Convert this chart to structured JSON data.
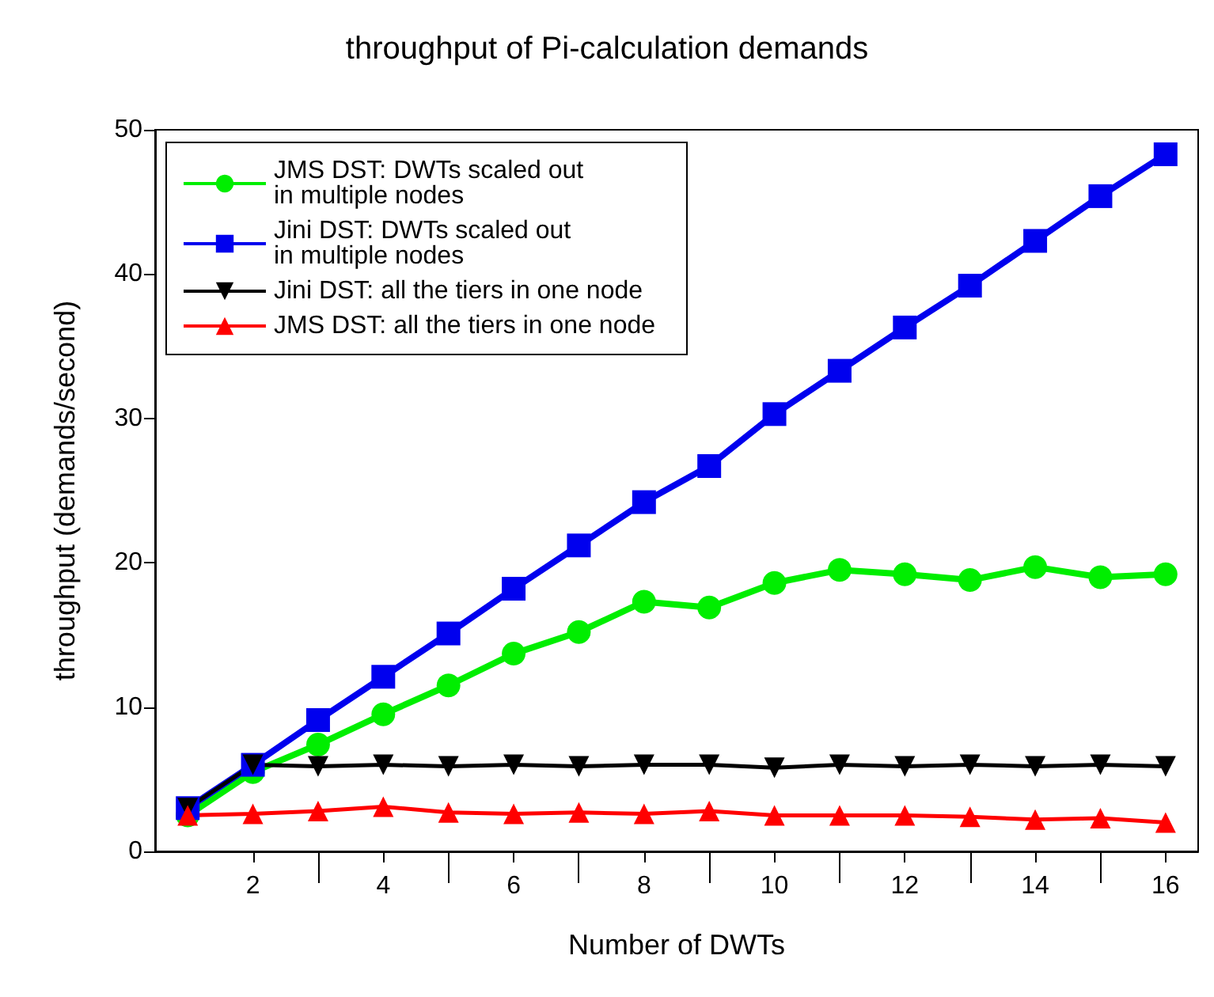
{
  "chart_data": {
    "type": "line",
    "title": "throughput of Pi-calculation demands",
    "xlabel": "Number of DWTs",
    "ylabel": "throughput (demands/second)",
    "x": [
      1,
      2,
      3,
      4,
      5,
      6,
      7,
      8,
      9,
      10,
      11,
      12,
      13,
      14,
      15,
      16
    ],
    "xlim": [
      0.5,
      16.5
    ],
    "xticks": [
      2,
      4,
      6,
      8,
      10,
      12,
      14,
      16
    ],
    "ylim": [
      0,
      50
    ],
    "yticks": [
      0,
      10,
      20,
      30,
      40,
      50
    ],
    "legend": "top left",
    "grid": false,
    "series": [
      {
        "name": "JMS DST: DWTs scaled out\nin multiple nodes",
        "color": "#00ee00",
        "marker": "circle",
        "values": [
          2.5,
          5.5,
          7.4,
          9.5,
          11.5,
          13.7,
          15.2,
          17.3,
          16.9,
          18.6,
          19.5,
          19.2,
          18.8,
          19.7,
          19.0,
          19.2
        ]
      },
      {
        "name": "Jini DST: DWTs scaled out\nin multiple nodes",
        "color": "#0000ee",
        "marker": "square",
        "values": [
          3.0,
          6.0,
          9.1,
          12.1,
          15.1,
          18.2,
          21.2,
          24.2,
          26.7,
          30.3,
          33.3,
          36.3,
          39.2,
          42.3,
          45.4,
          48.3
        ]
      },
      {
        "name": "Jini DST: all the tiers in one node",
        "color": "#000000",
        "marker": "triangle-down",
        "values": [
          3.0,
          6.0,
          5.9,
          6.0,
          5.9,
          6.0,
          5.9,
          6.0,
          6.0,
          5.8,
          6.0,
          5.9,
          6.0,
          5.9,
          6.0,
          5.9
        ]
      },
      {
        "name": "JMS DST: all the tiers in one node",
        "color": "#ff0000",
        "marker": "triangle",
        "values": [
          2.5,
          2.6,
          2.8,
          3.1,
          2.7,
          2.6,
          2.7,
          2.6,
          2.8,
          2.5,
          2.5,
          2.5,
          2.4,
          2.2,
          2.3,
          2.0
        ]
      }
    ]
  }
}
